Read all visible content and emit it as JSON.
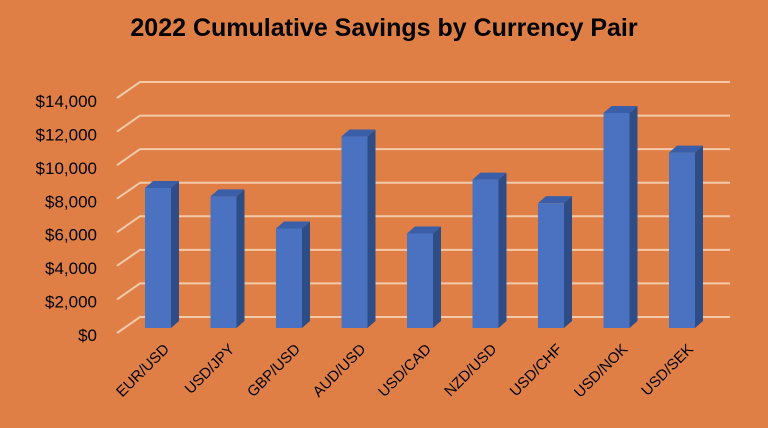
{
  "chart_data": {
    "type": "bar",
    "style": "3d-column",
    "title": "2022 Cumulative Savings by Currency Pair",
    "xlabel": "",
    "ylabel": "",
    "categories": [
      "EUR/USD",
      "USD/JPY",
      "GBP/USD",
      "AUD/USD",
      "USD/CAD",
      "NZD/USD",
      "USD/CHF",
      "USD/NOK",
      "USD/SEK"
    ],
    "values": [
      8300,
      7800,
      5900,
      11350,
      5600,
      8800,
      7400,
      12750,
      10400
    ],
    "ylim": [
      0,
      14000
    ],
    "yticks": [
      0,
      2000,
      4000,
      6000,
      8000,
      10000,
      12000,
      14000
    ],
    "ytick_labels": [
      "$0",
      "$2,000",
      "$4,000",
      "$6,000",
      "$8,000",
      "$10,000",
      "$12,000",
      "$14,000"
    ],
    "grid": true,
    "legend": "none",
    "colors": {
      "background": "#e07f45",
      "bar_front": "#4a72c0",
      "bar_side": "#2e4c86",
      "bar_top": "#3a5ea8",
      "gridline": "#f2c9a9"
    }
  }
}
